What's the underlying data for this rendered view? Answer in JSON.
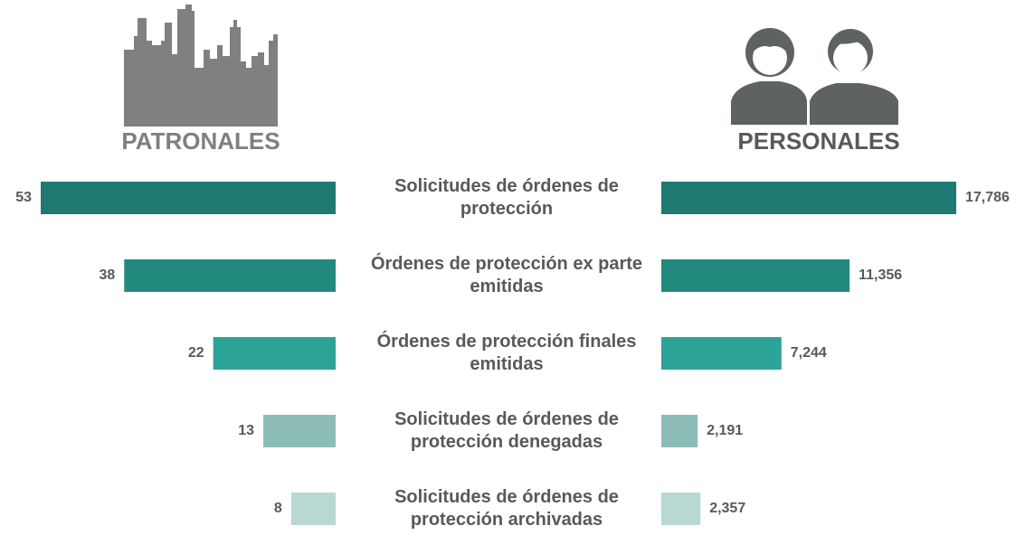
{
  "chart_data": [
    {
      "type": "bar",
      "orientation": "horizontal",
      "direction": "left",
      "title": "PATRONALES",
      "categories": [
        "Solicitudes de órdenes de protección",
        "Órdenes de protección ex parte emitidas",
        "Órdenes de protección finales emitidas",
        "Solicitudes de órdenes de protección denegadas",
        "Solicitudes de órdenes de protección archivadas"
      ],
      "values": [
        53,
        38,
        22,
        13,
        8
      ],
      "colors": [
        "#1f7872",
        "#22897f",
        "#2ba396",
        "#8bbcb5",
        "#b9d8d3"
      ]
    },
    {
      "type": "bar",
      "orientation": "horizontal",
      "direction": "right",
      "title": "PERSONALES",
      "values": [
        17786,
        11356,
        7244,
        2191,
        2357
      ],
      "value_labels": [
        "17,786",
        "11,356",
        "7,244",
        "2,191",
        "2,357"
      ],
      "colors": [
        "#1f7872",
        "#22897f",
        "#2ba396",
        "#8bbcb5",
        "#b9d8d3"
      ]
    }
  ]
}
